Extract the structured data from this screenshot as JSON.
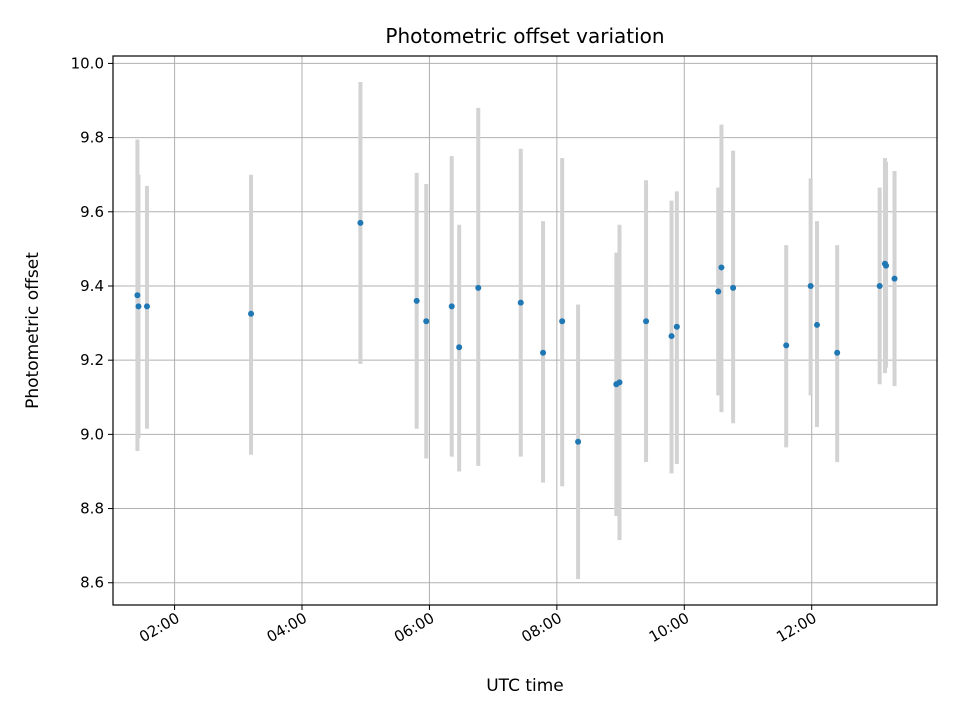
{
  "chart_data": {
    "type": "scatter",
    "title": "Photometric offset variation",
    "xlabel": "UTC time",
    "ylabel": "Photometric offset",
    "x_unit": "UTC time of day (HH:MM)",
    "xlim": [
      "01:02",
      "13:58"
    ],
    "ylim": [
      8.54,
      10.02
    ],
    "x_ticks": [
      "02:00",
      "04:00",
      "06:00",
      "08:00",
      "10:00",
      "12:00"
    ],
    "y_ticks": [
      "8.6",
      "8.8",
      "9.0",
      "9.2",
      "9.4",
      "9.6",
      "9.8",
      "10.0"
    ],
    "grid": true,
    "legend": false,
    "colors": {
      "marker": "#1f77b4",
      "errorbar": "#d3d3d3",
      "grid": "#b0b0b0",
      "axes": "#000000"
    },
    "series": [
      {
        "points": [
          {
            "x": "01:25",
            "y": 9.375,
            "ylow": 8.955,
            "yhigh": 9.795
          },
          {
            "x": "01:26",
            "y": 9.345,
            "ylow": 8.99,
            "yhigh": 9.7
          },
          {
            "x": "01:34",
            "y": 9.345,
            "ylow": 9.015,
            "yhigh": 9.67
          },
          {
            "x": "03:12",
            "y": 9.325,
            "ylow": 8.945,
            "yhigh": 9.7
          },
          {
            "x": "04:55",
            "y": 9.57,
            "ylow": 9.19,
            "yhigh": 9.95
          },
          {
            "x": "05:48",
            "y": 9.36,
            "ylow": 9.015,
            "yhigh": 9.705
          },
          {
            "x": "05:57",
            "y": 9.305,
            "ylow": 8.935,
            "yhigh": 9.675
          },
          {
            "x": "06:21",
            "y": 9.345,
            "ylow": 8.94,
            "yhigh": 9.75
          },
          {
            "x": "06:28",
            "y": 9.235,
            "ylow": 8.9,
            "yhigh": 9.565
          },
          {
            "x": "06:46",
            "y": 9.395,
            "ylow": 8.915,
            "yhigh": 9.88
          },
          {
            "x": "07:26",
            "y": 9.355,
            "ylow": 8.94,
            "yhigh": 9.77
          },
          {
            "x": "07:47",
            "y": 9.22,
            "ylow": 8.87,
            "yhigh": 9.575
          },
          {
            "x": "08:05",
            "y": 9.305,
            "ylow": 8.86,
            "yhigh": 9.745
          },
          {
            "x": "08:20",
            "y": 8.98,
            "ylow": 8.61,
            "yhigh": 9.35
          },
          {
            "x": "08:56",
            "y": 9.135,
            "ylow": 8.78,
            "yhigh": 9.49
          },
          {
            "x": "08:59",
            "y": 9.14,
            "ylow": 8.715,
            "yhigh": 9.565
          },
          {
            "x": "09:24",
            "y": 9.305,
            "ylow": 8.925,
            "yhigh": 9.685
          },
          {
            "x": "09:48",
            "y": 9.265,
            "ylow": 8.895,
            "yhigh": 9.63
          },
          {
            "x": "09:53",
            "y": 9.29,
            "ylow": 8.92,
            "yhigh": 9.655
          },
          {
            "x": "10:32",
            "y": 9.385,
            "ylow": 9.105,
            "yhigh": 9.665
          },
          {
            "x": "10:35",
            "y": 9.45,
            "ylow": 9.06,
            "yhigh": 9.835
          },
          {
            "x": "10:46",
            "y": 9.395,
            "ylow": 9.03,
            "yhigh": 9.765
          },
          {
            "x": "11:36",
            "y": 9.24,
            "ylow": 8.965,
            "yhigh": 9.51
          },
          {
            "x": "11:59",
            "y": 9.4,
            "ylow": 9.105,
            "yhigh": 9.69
          },
          {
            "x": "12:05",
            "y": 9.295,
            "ylow": 9.02,
            "yhigh": 9.575
          },
          {
            "x": "12:24",
            "y": 9.22,
            "ylow": 8.925,
            "yhigh": 9.51
          },
          {
            "x": "13:04",
            "y": 9.4,
            "ylow": 9.135,
            "yhigh": 9.665
          },
          {
            "x": "13:09",
            "y": 9.46,
            "ylow": 9.165,
            "yhigh": 9.745
          },
          {
            "x": "13:10",
            "y": 9.455,
            "ylow": 9.18,
            "yhigh": 9.735
          },
          {
            "x": "13:18",
            "y": 9.42,
            "ylow": 9.13,
            "yhigh": 9.71
          }
        ]
      }
    ]
  }
}
